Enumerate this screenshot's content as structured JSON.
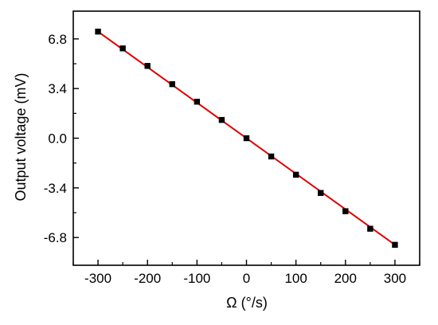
{
  "chart_data": {
    "type": "scatter",
    "title": "",
    "xlabel": "Ω (°/s)",
    "ylabel": "Output voltage (mV)",
    "xlim": [
      -350,
      350
    ],
    "ylim": [
      -8.7,
      8.7
    ],
    "xticks": [
      -300,
      -200,
      -100,
      0,
      100,
      200,
      300
    ],
    "xtick_labels": [
      "-300",
      "-200",
      "-100",
      "0",
      "100",
      "200",
      "300"
    ],
    "yticks": [
      6.8,
      3.4,
      0.0,
      -3.4,
      -6.8
    ],
    "ytick_labels": [
      "6.8",
      "3.4",
      "0.0",
      "-3.4",
      "-6.8"
    ],
    "grid": false,
    "series": [
      {
        "type": "scatter",
        "marker": "square",
        "color": "#000000",
        "x": [
          -300,
          -250,
          -200,
          -150,
          -100,
          -50,
          0,
          50,
          100,
          150,
          200,
          250,
          300
        ],
        "y": [
          7.3,
          6.15,
          4.95,
          3.7,
          2.5,
          1.25,
          0.0,
          -1.25,
          -2.5,
          -3.75,
          -5.0,
          -6.2,
          -7.3
        ]
      },
      {
        "type": "line",
        "color": "#e00000",
        "x": [
          -300,
          300
        ],
        "y": [
          7.3,
          -7.3
        ]
      }
    ]
  }
}
